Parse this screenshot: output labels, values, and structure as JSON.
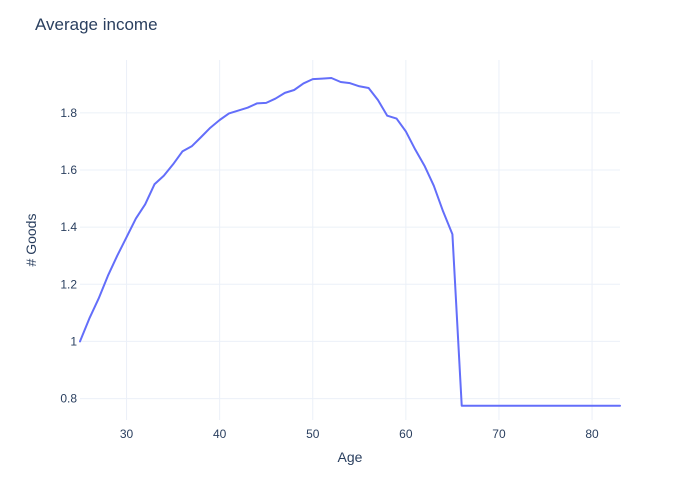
{
  "chart_data": {
    "type": "line",
    "title": "Average income",
    "xlabel": "Age",
    "ylabel": "# Goods",
    "xlim": [
      25,
      83
    ],
    "ylim": [
      0.725,
      1.985
    ],
    "x_ticks": [
      30,
      40,
      50,
      60,
      70,
      80
    ],
    "y_ticks": [
      0.8,
      1,
      1.2,
      1.4,
      1.6,
      1.8
    ],
    "y_tick_labels": [
      "0.8",
      "1",
      "1.2",
      "1.4",
      "1.6",
      "1.8"
    ],
    "grid": true,
    "line_color": "#636efa",
    "series": [
      {
        "x": [
          25,
          26,
          27,
          28,
          29,
          30,
          31,
          32,
          33,
          34,
          35,
          36,
          37,
          38,
          39,
          40,
          41,
          42,
          43,
          44,
          45,
          46,
          47,
          48,
          49,
          50,
          51,
          52,
          53,
          54,
          55,
          56,
          57,
          58,
          59,
          60,
          61,
          62,
          63,
          64,
          65,
          66,
          67,
          68,
          69,
          70,
          71,
          72,
          73,
          74,
          75,
          76,
          77,
          78,
          79,
          80,
          81,
          82,
          83
        ],
        "values": [
          1.0,
          1.08,
          1.15,
          1.23,
          1.3,
          1.365,
          1.43,
          1.48,
          1.55,
          1.58,
          1.62,
          1.665,
          1.683,
          1.715,
          1.748,
          1.775,
          1.798,
          1.808,
          1.818,
          1.833,
          1.835,
          1.85,
          1.87,
          1.88,
          1.903,
          1.918,
          1.92,
          1.922,
          1.908,
          1.904,
          1.893,
          1.887,
          1.845,
          1.79,
          1.78,
          1.735,
          1.672,
          1.615,
          1.545,
          1.455,
          1.375,
          0.775,
          0.775,
          0.775,
          0.775,
          0.775,
          0.775,
          0.775,
          0.775,
          0.775,
          0.775,
          0.775,
          0.775,
          0.775,
          0.775,
          0.775,
          0.775,
          0.775,
          0.775
        ]
      }
    ]
  }
}
